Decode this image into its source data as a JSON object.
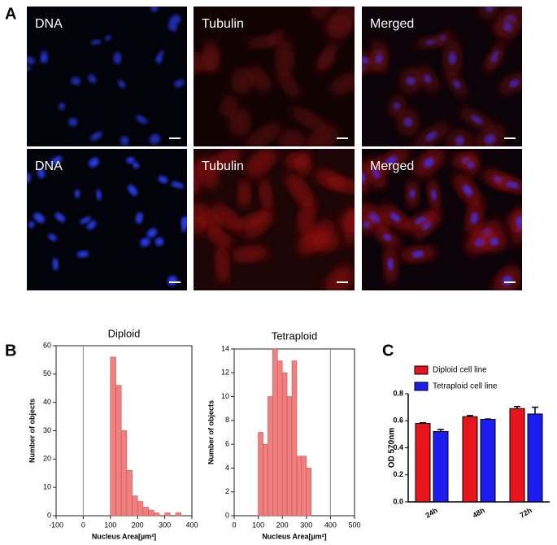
{
  "panel_labels": [
    "A",
    "B",
    "C"
  ],
  "images": [
    {
      "label": "DNA"
    },
    {
      "label": "Tubulin"
    },
    {
      "label": "Merged"
    },
    {
      "label": "DNA"
    },
    {
      "label": "Tubulin"
    },
    {
      "label": "Merged"
    }
  ],
  "chart_data": [
    {
      "type": "histogram",
      "title": "Diploid",
      "x_label": "Nucleus Area[µm²]",
      "y_label": "Number of objects",
      "bins": [
        100,
        120,
        140,
        160,
        180,
        200,
        220,
        240,
        260,
        280,
        300,
        320,
        340,
        360
      ],
      "values": [
        56,
        46,
        30,
        16,
        7,
        5,
        3,
        2,
        1,
        0,
        1,
        0,
        1
      ],
      "color": "#f08080",
      "xlim": [
        -100,
        400
      ],
      "xticks": [
        -100,
        0,
        100,
        200,
        300,
        400
      ],
      "ylim": [
        0,
        60
      ],
      "yticks": [
        0,
        10,
        20,
        30,
        40,
        50,
        60
      ],
      "vlines": [
        0
      ]
    },
    {
      "type": "histogram",
      "title": "Tetraploid",
      "x_label": "Nucleus Area[µm²]",
      "y_label": "Number of objects",
      "bins": [
        100,
        120,
        140,
        160,
        180,
        200,
        220,
        240,
        260,
        280,
        300,
        320
      ],
      "values": [
        7,
        6,
        10,
        14,
        13,
        12,
        10,
        13,
        5,
        5,
        4
      ],
      "color": "#f08080",
      "xlim": [
        0,
        500
      ],
      "xticks": [
        0,
        100,
        200,
        300,
        400,
        500
      ],
      "ylim": [
        0,
        14
      ],
      "yticks": [
        0,
        2,
        4,
        6,
        8,
        10,
        12,
        14
      ],
      "vlines": [
        400
      ]
    },
    {
      "type": "bar",
      "y_label": "OD 570nm",
      "categories": [
        "24h",
        "48h",
        "72h"
      ],
      "series": [
        {
          "name": "Diploid cell line",
          "color": "#e8141c",
          "values": [
            0.58,
            0.63,
            0.69
          ],
          "errors": [
            0.005,
            0.008,
            0.015
          ]
        },
        {
          "name": "Tetraploid cell line",
          "color": "#1c1cf0",
          "values": [
            0.52,
            0.61,
            0.65
          ],
          "errors": [
            0.015,
            0.003,
            0.05
          ]
        }
      ],
      "ylim": [
        0,
        0.8
      ],
      "yticks": [
        {
          "value": 0,
          "label": "0.0"
        },
        0.2,
        0.4,
        0.6,
        0.8
      ]
    }
  ]
}
